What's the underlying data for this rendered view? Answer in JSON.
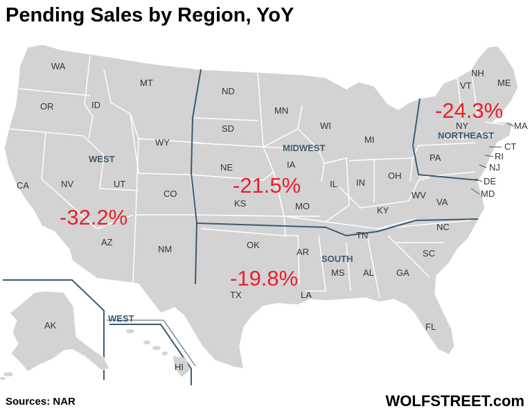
{
  "title": "Pending Sales by Region, YoY",
  "source": "Sources: NAR",
  "brand": "WOLFSTREET.com",
  "colors": {
    "land": "#d3d3d3",
    "state_border": "#ffffff",
    "region_border": "#3d5a6e",
    "value_text": "#e8202a"
  },
  "regions": [
    {
      "name": "WEST",
      "value": "-32.2%"
    },
    {
      "name": "MIDWEST",
      "value": "-21.5%"
    },
    {
      "name": "SOUTH",
      "value": "-19.8%"
    },
    {
      "name": "NORTHEAST",
      "value": "-24.3%"
    },
    {
      "name": "WEST",
      "value": ""
    }
  ],
  "states": [
    "WA",
    "OR",
    "CA",
    "NV",
    "ID",
    "MT",
    "WY",
    "UT",
    "CO",
    "AZ",
    "NM",
    "ND",
    "SD",
    "NE",
    "KS",
    "MN",
    "IA",
    "MO",
    "WI",
    "IL",
    "MI",
    "IN",
    "OH",
    "OK",
    "TX",
    "AR",
    "LA",
    "MS",
    "AL",
    "TN",
    "KY",
    "GA",
    "SC",
    "NC",
    "VA",
    "WV",
    "FL",
    "PA",
    "NY",
    "VT",
    "NH",
    "ME",
    "MA",
    "CT",
    "RI",
    "NJ",
    "DE",
    "MD",
    "AK",
    "HI"
  ]
}
